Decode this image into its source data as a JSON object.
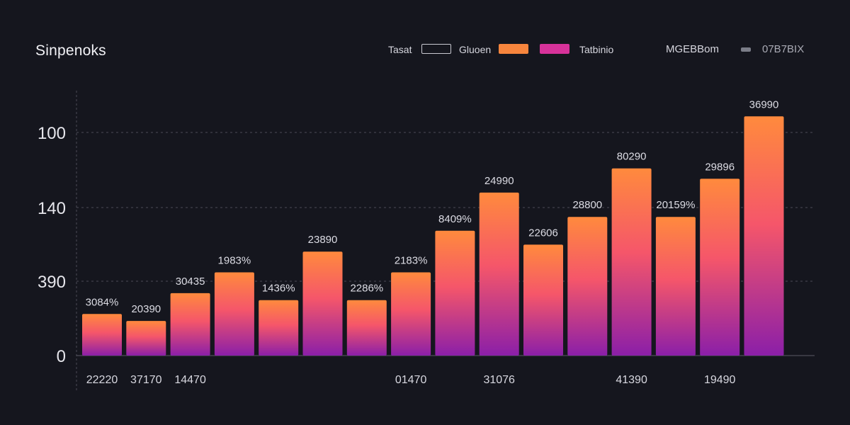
{
  "chart_data": {
    "type": "bar",
    "title": "Sinpenoks",
    "legend": [
      {
        "label": "Tasat",
        "style": "outline",
        "color": "#c9c9d1"
      },
      {
        "label": "Gluoen",
        "style": "fill",
        "color": "#f7853d"
      },
      {
        "label": "",
        "style": "fill",
        "color": "#d7329a"
      },
      {
        "label": "Tatbinio",
        "style": "text",
        "color": ""
      },
      {
        "label": "MGEBBom",
        "style": "text",
        "color": ""
      },
      {
        "label": "07B7BIX",
        "style": "small",
        "color": "#7b7d88"
      }
    ],
    "yticks": [
      "100",
      "140",
      "390",
      "0"
    ],
    "values": [
      60,
      50,
      90,
      120,
      80,
      150,
      80,
      120,
      180,
      235,
      160,
      200,
      270,
      200,
      255,
      345
    ],
    "bar_labels": [
      "3084%",
      "20390",
      "30435",
      "1983%",
      "1436%",
      "23890",
      "2286%",
      "2183%",
      "8409%",
      "24990",
      "22606",
      "28800",
      "80290",
      "20159%",
      "29896",
      "36990"
    ],
    "x_labels": [
      "22220",
      "37170",
      "14470",
      "",
      "",
      "",
      "",
      "01470",
      "",
      "31076",
      "",
      "",
      "41390",
      "",
      "19490",
      ""
    ],
    "ylim": [
      0,
      380
    ],
    "grid": true,
    "colors": {
      "top": "#ff8a3d",
      "mid": "#f5566a",
      "bottom": "#8b1fa8",
      "grid": "#4a4b56",
      "axis": "#5a5b66"
    }
  }
}
